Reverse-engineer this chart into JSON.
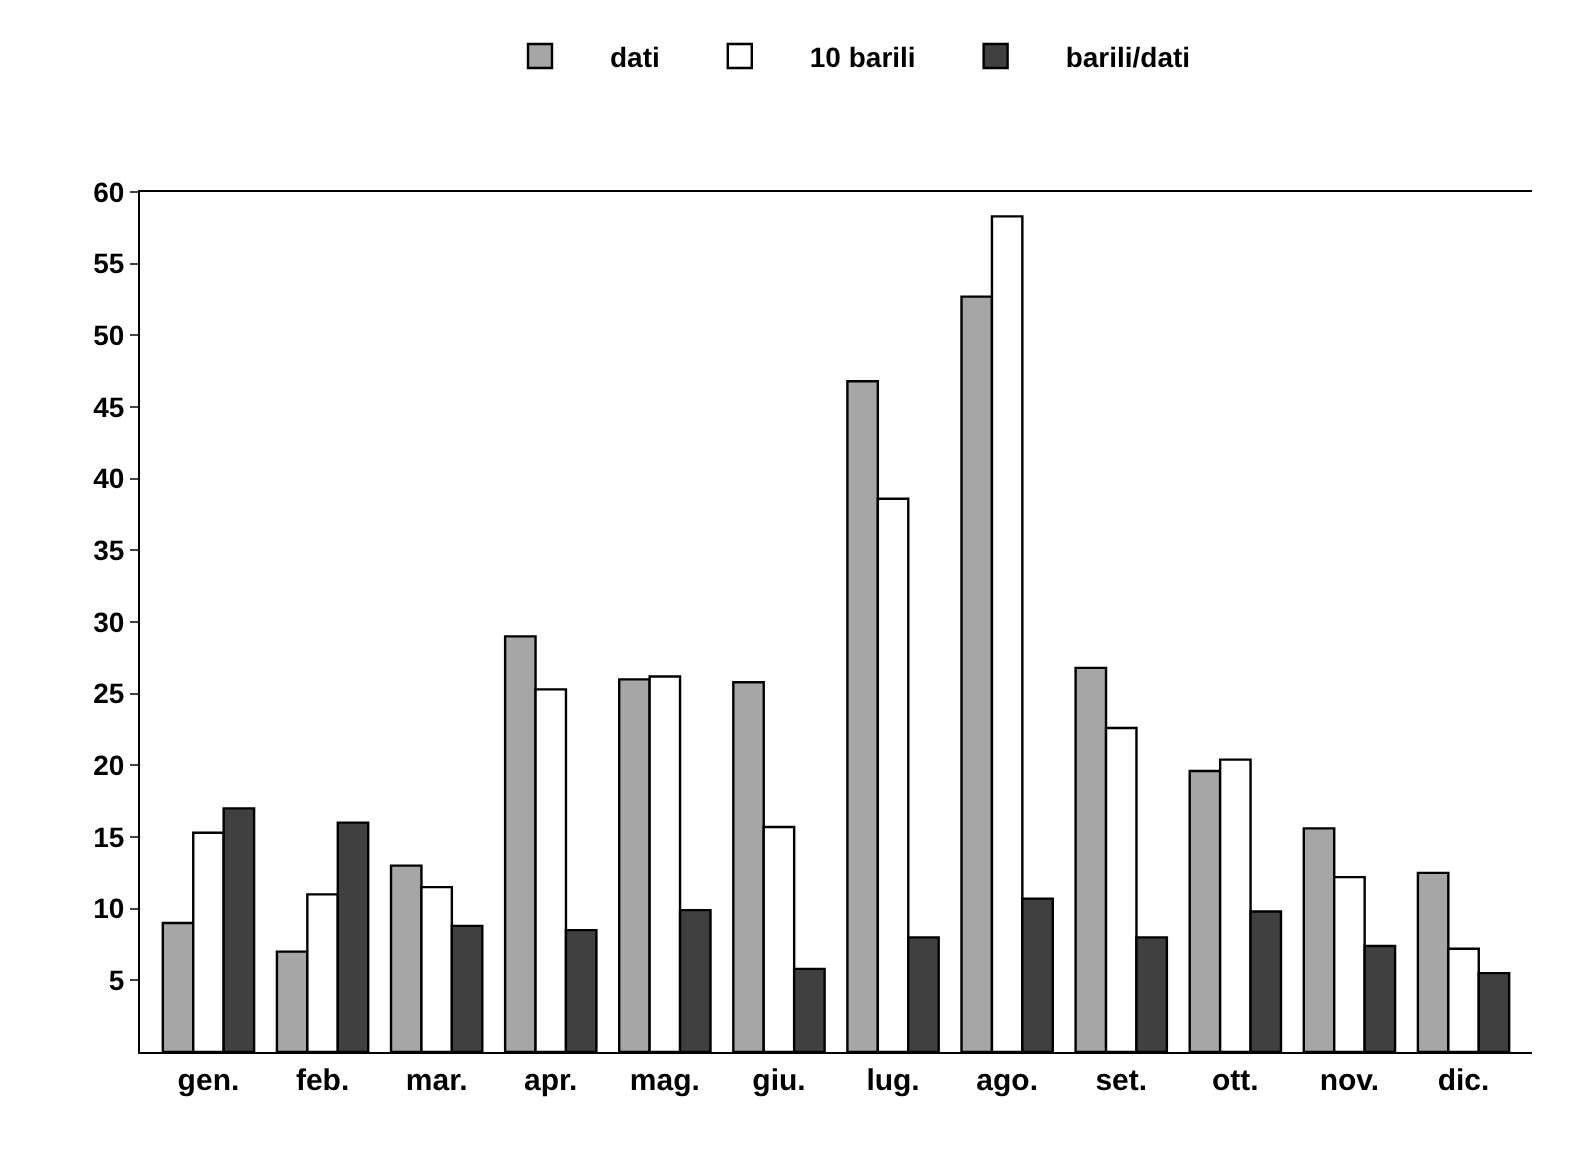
{
  "chart_data": {
    "type": "bar",
    "categories": [
      "gen.",
      "feb.",
      "mar.",
      "apr.",
      "mag.",
      "giu.",
      "lug.",
      "ago.",
      "set.",
      "ott.",
      "nov.",
      "dic."
    ],
    "series": [
      {
        "name": "dati",
        "color": "#a6a6a6",
        "values": [
          9,
          7,
          13,
          29,
          26,
          25.8,
          46.8,
          52.7,
          26.8,
          19.6,
          15.6,
          12.5
        ]
      },
      {
        "name": "10 barili",
        "color": "#ffffff",
        "values": [
          15.3,
          11,
          11.5,
          25.3,
          26.2,
          15.7,
          38.6,
          58.3,
          22.6,
          20.4,
          12.2,
          7.2
        ]
      },
      {
        "name": "barili/dati",
        "color": "#404040",
        "values": [
          17,
          16,
          8.8,
          8.5,
          9.9,
          5.8,
          8,
          10.7,
          8,
          9.8,
          7.4,
          5.5
        ]
      }
    ],
    "ylim": [
      0,
      60
    ],
    "yticks": [
      5,
      10,
      15,
      20,
      25,
      30,
      35,
      40,
      45,
      50,
      55,
      60
    ],
    "legend": "top"
  }
}
